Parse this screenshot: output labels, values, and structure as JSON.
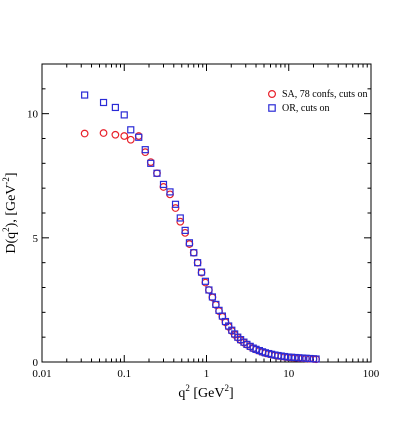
{
  "chart_data": {
    "type": "scatter",
    "title": "",
    "xlabel": {
      "base": "q",
      "sup": "2",
      "unit_pre": " [GeV",
      "unit_sup": "2",
      "unit_post": "]"
    },
    "ylabel": {
      "base": "D(q",
      "sup": "2",
      "mid": "),  [GeV",
      "unit_sup": "-2",
      "unit_post": "]"
    },
    "xscale": "log",
    "xlim": [
      0.01,
      100
    ],
    "ylim": [
      0,
      12
    ],
    "grid": false,
    "legend_position": "top-right",
    "x_ticks": [
      {
        "value": 0.01,
        "label": "0.01"
      },
      {
        "value": 0.1,
        "label": "0.1"
      },
      {
        "value": 1,
        "label": "1"
      },
      {
        "value": 10,
        "label": "10"
      },
      {
        "value": 100,
        "label": "100"
      }
    ],
    "y_ticks": [
      {
        "value": 0,
        "label": "0"
      },
      {
        "value": 5,
        "label": "5"
      },
      {
        "value": 10,
        "label": "10"
      }
    ],
    "series": [
      {
        "name": "SA, 78 confs, cuts on",
        "marker": "circle",
        "color": "#e8202a",
        "points": [
          [
            0.033,
            9.2
          ],
          [
            0.056,
            9.22
          ],
          [
            0.078,
            9.15
          ],
          [
            0.1,
            9.1
          ],
          [
            0.12,
            8.95
          ],
          [
            0.15,
            9.1
          ],
          [
            0.18,
            8.45
          ],
          [
            0.21,
            8.05
          ],
          [
            0.25,
            7.6
          ],
          [
            0.3,
            7.05
          ],
          [
            0.36,
            6.75
          ],
          [
            0.42,
            6.2
          ],
          [
            0.48,
            5.65
          ],
          [
            0.55,
            5.2
          ],
          [
            0.62,
            4.75
          ],
          [
            0.7,
            4.4
          ],
          [
            0.78,
            4.0
          ],
          [
            0.87,
            3.6
          ],
          [
            0.97,
            3.2
          ],
          [
            1.07,
            2.9
          ],
          [
            1.18,
            2.6
          ],
          [
            1.3,
            2.3
          ],
          [
            1.42,
            2.05
          ],
          [
            1.56,
            1.82
          ],
          [
            1.7,
            1.6
          ],
          [
            1.86,
            1.42
          ],
          [
            2.03,
            1.25
          ],
          [
            2.2,
            1.1
          ],
          [
            2.4,
            0.98
          ],
          [
            2.6,
            0.88
          ],
          [
            2.85,
            0.78
          ],
          [
            3.1,
            0.7
          ],
          [
            3.4,
            0.62
          ],
          [
            3.7,
            0.55
          ],
          [
            4.0,
            0.5
          ],
          [
            4.4,
            0.45
          ],
          [
            4.8,
            0.4
          ],
          [
            5.2,
            0.36
          ],
          [
            5.7,
            0.33
          ],
          [
            6.2,
            0.3
          ],
          [
            6.8,
            0.27
          ],
          [
            7.4,
            0.25
          ],
          [
            8.1,
            0.23
          ],
          [
            8.9,
            0.21
          ],
          [
            9.8,
            0.19
          ],
          [
            10.8,
            0.18
          ],
          [
            11.9,
            0.17
          ],
          [
            13.2,
            0.16
          ],
          [
            14.6,
            0.15
          ],
          [
            16.2,
            0.14
          ],
          [
            18.0,
            0.13
          ],
          [
            20.0,
            0.12
          ],
          [
            21.5,
            0.11
          ]
        ]
      },
      {
        "name": "OR, cuts on",
        "marker": "square",
        "color": "#2b2bd6",
        "points": [
          [
            0.033,
            10.75
          ],
          [
            0.056,
            10.45
          ],
          [
            0.078,
            10.25
          ],
          [
            0.1,
            9.95
          ],
          [
            0.12,
            9.35
          ],
          [
            0.15,
            9.05
          ],
          [
            0.18,
            8.55
          ],
          [
            0.21,
            8.0
          ],
          [
            0.25,
            7.6
          ],
          [
            0.3,
            7.15
          ],
          [
            0.36,
            6.85
          ],
          [
            0.42,
            6.35
          ],
          [
            0.48,
            5.8
          ],
          [
            0.55,
            5.3
          ],
          [
            0.62,
            4.8
          ],
          [
            0.7,
            4.4
          ],
          [
            0.78,
            4.0
          ],
          [
            0.87,
            3.62
          ],
          [
            0.97,
            3.25
          ],
          [
            1.07,
            2.9
          ],
          [
            1.18,
            2.62
          ],
          [
            1.3,
            2.32
          ],
          [
            1.42,
            2.08
          ],
          [
            1.56,
            1.85
          ],
          [
            1.7,
            1.63
          ],
          [
            1.86,
            1.45
          ],
          [
            2.03,
            1.28
          ],
          [
            2.2,
            1.13
          ],
          [
            2.4,
            1.0
          ],
          [
            2.6,
            0.9
          ],
          [
            2.85,
            0.8
          ],
          [
            3.1,
            0.71
          ],
          [
            3.4,
            0.63
          ],
          [
            3.7,
            0.56
          ],
          [
            4.0,
            0.51
          ],
          [
            4.4,
            0.46
          ],
          [
            4.8,
            0.41
          ],
          [
            5.2,
            0.37
          ],
          [
            5.7,
            0.34
          ],
          [
            6.2,
            0.31
          ],
          [
            6.8,
            0.28
          ],
          [
            7.4,
            0.26
          ],
          [
            8.1,
            0.24
          ],
          [
            8.9,
            0.22
          ],
          [
            9.8,
            0.2
          ],
          [
            10.8,
            0.19
          ],
          [
            11.9,
            0.18
          ],
          [
            13.2,
            0.17
          ],
          [
            14.6,
            0.16
          ],
          [
            16.2,
            0.15
          ],
          [
            18.0,
            0.14
          ],
          [
            20.0,
            0.13
          ],
          [
            21.5,
            0.12
          ]
        ]
      }
    ]
  }
}
